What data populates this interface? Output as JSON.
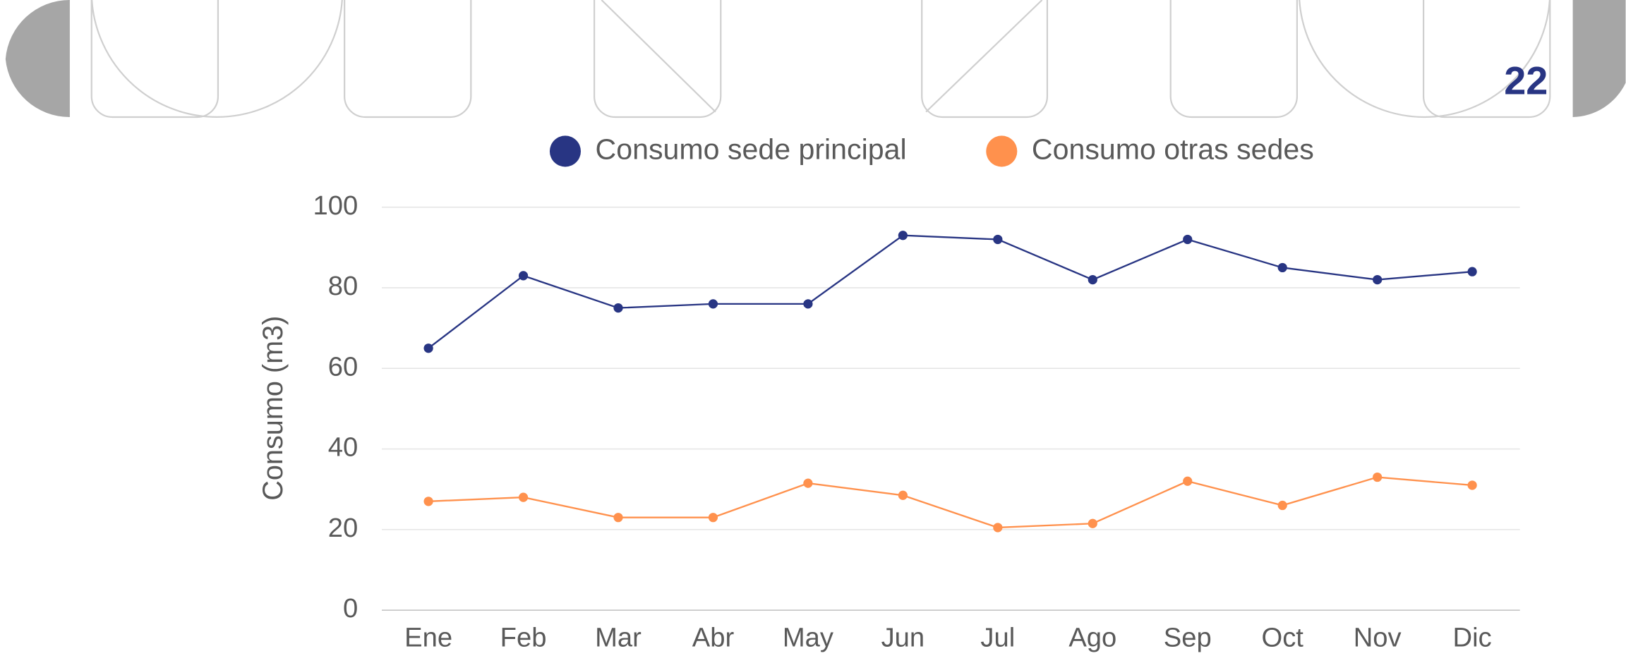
{
  "page_number": "22",
  "chart_data": {
    "type": "line",
    "ylabel": "Consumo (m3)",
    "categories": [
      "Ene",
      "Feb",
      "Mar",
      "Abr",
      "May",
      "Jun",
      "Jul",
      "Ago",
      "Sep",
      "Oct",
      "Nov",
      "Dic"
    ],
    "series": [
      {
        "name": "Consumo sede principal",
        "color": "#283583",
        "values": [
          65,
          83,
          75,
          76,
          76,
          93,
          92,
          82,
          92,
          85,
          82,
          84
        ]
      },
      {
        "name": "Consumo otras sedes",
        "color": "#ff914d",
        "values": [
          27,
          28,
          23,
          23,
          31.5,
          28.5,
          20.5,
          21.5,
          32,
          26,
          33,
          31
        ]
      }
    ],
    "ylim": [
      0,
      100
    ],
    "yticks": [
      0,
      20,
      40,
      60,
      80,
      100
    ],
    "grid": true,
    "legend": "top"
  }
}
